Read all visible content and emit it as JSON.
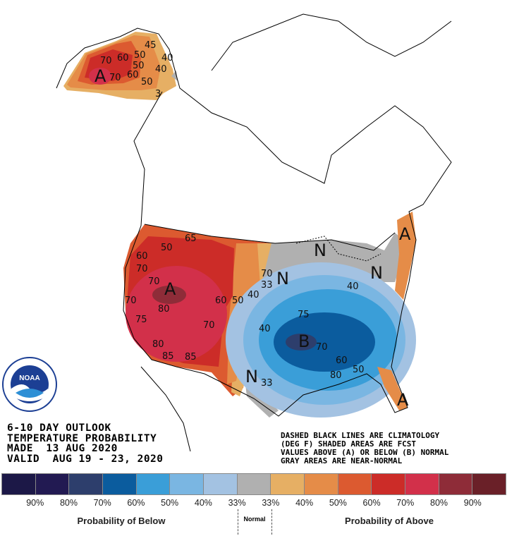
{
  "header": {
    "lines": [
      "6-10 DAY OUTLOOK",
      "TEMPERATURE PROBABILITY",
      "MADE  13 AUG 2020",
      "VALID  AUG 19 - 23, 2020"
    ]
  },
  "notes": {
    "lines": [
      "DASHED BLACK LINES ARE CLIMATOLOGY",
      "(DEG F) SHADED AREAS ARE FCST",
      "VALUES ABOVE (A) OR BELOW (B) NORMAL",
      "GRAY AREAS ARE NEAR-NORMAL"
    ]
  },
  "logo": {
    "text": "NOAA",
    "ring_text": "NATIONAL OCEANIC AND ATMOSPHERIC ADMINISTRATION · U.S. DEPARTMENT OF COMMERCE"
  },
  "map": {
    "labels": [
      "A",
      "A",
      "A",
      "A",
      "B",
      "N",
      "N",
      "N",
      "N",
      "45",
      "50",
      "40",
      "50",
      "60",
      "60",
      "50",
      "40",
      "3",
      "70",
      "70",
      "50",
      "65",
      "60",
      "70",
      "70",
      "70",
      "80",
      "75",
      "80",
      "85",
      "85",
      "70",
      "60",
      "50",
      "40",
      "70",
      "33",
      "33",
      "40",
      "75",
      "80",
      "70",
      "60",
      "50",
      "40"
    ]
  },
  "legend": {
    "colors": [
      "#1c1847",
      "#221a52",
      "#2d3e6c",
      "#0b5c9e",
      "#3a9ed8",
      "#7ab6e2",
      "#a3c2e2",
      "#b0b0b0",
      "#e6af64",
      "#e58c48",
      "#dc5a30",
      "#cc2c28",
      "#d2304a",
      "#8e2c38",
      "#6a2028"
    ],
    "ticks": [
      "90%",
      "80%",
      "70%",
      "60%",
      "50%",
      "40%",
      "33%",
      "33%",
      "40%",
      "50%",
      "60%",
      "70%",
      "80%",
      "90%"
    ],
    "below_title": "Probability of Below",
    "normal_title": "Normal",
    "above_title": "Probability of Above"
  }
}
